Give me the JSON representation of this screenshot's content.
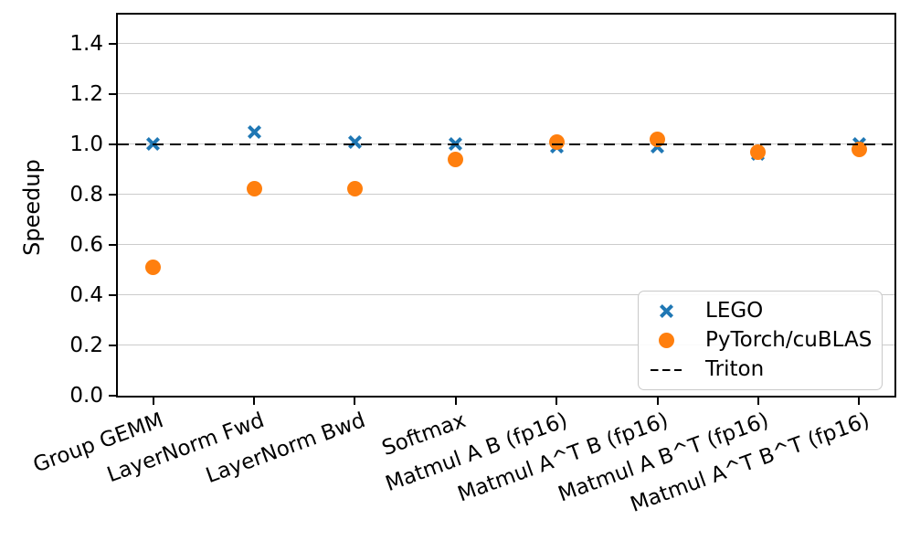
{
  "chart_data": {
    "type": "scatter",
    "title": "",
    "xlabel": "",
    "ylabel": "Speedup",
    "categories": [
      "Group GEMM",
      "LayerNorm Fwd",
      "LayerNorm Bwd",
      "Softmax",
      "Matmul A B (fp16)",
      "Matmul A^T B (fp16)",
      "Matmul A B^T (fp16)",
      "Matmul A^T B^T (fp16)"
    ],
    "series": [
      {
        "name": "LEGO",
        "marker": "x",
        "color": "#1f77b4",
        "values": [
          1.0,
          1.05,
          1.01,
          1.0,
          0.99,
          0.99,
          0.96,
          1.0
        ]
      },
      {
        "name": "PyTorch/cuBLAS",
        "marker": "circle",
        "color": "#ff7f0e",
        "values": [
          0.51,
          0.825,
          0.825,
          0.94,
          1.01,
          1.02,
          0.97,
          0.98
        ]
      }
    ],
    "reference_line": {
      "name": "Triton",
      "value": 1.0,
      "style": "dashed",
      "color": "#000000"
    },
    "yticks": [
      0.0,
      0.2,
      0.4,
      0.6,
      0.8,
      1.0,
      1.2,
      1.4
    ],
    "ytick_labels": [
      "0.0",
      "0.2",
      "0.4",
      "0.6",
      "0.8",
      "1.0",
      "1.2",
      "1.4"
    ],
    "ylim": [
      0,
      1.516
    ],
    "grid": "horizontal",
    "grid_color": "#cccccc",
    "frame_color": "#000000",
    "legend_position": "lower right"
  }
}
